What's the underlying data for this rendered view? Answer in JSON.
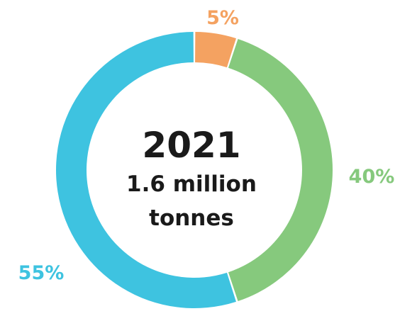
{
  "chart_data": {
    "type": "pie",
    "variant": "donut",
    "center_text": {
      "year": "2021",
      "line1": "1.6 million",
      "line2": "tonnes"
    },
    "slices": [
      {
        "value": 5,
        "label": "5%",
        "color": "#f4a261"
      },
      {
        "value": 40,
        "label": "40%",
        "color": "#86c97d"
      },
      {
        "value": 55,
        "label": "55%",
        "color": "#3ec3e0"
      }
    ],
    "start_angle_deg": 0,
    "direction": "clockwise",
    "legend": "none"
  }
}
